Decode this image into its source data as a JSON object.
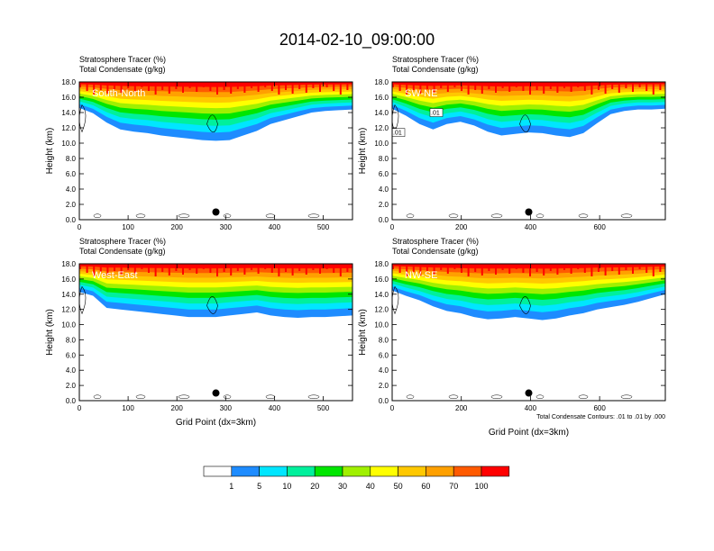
{
  "title": "2014-02-10_09:00:00",
  "chart_data": [
    {
      "type": "heatmap",
      "subtitle_left_1": "Stratosphere Tracer   (%)",
      "subtitle_left_2": "Total Condensate   (g/kg)",
      "panel_label": "South-North",
      "ylabel": "Height (km)",
      "xlabel": "",
      "xlim": [
        0,
        560
      ],
      "ylim": [
        0,
        18
      ],
      "xticks": [
        0,
        100,
        200,
        300,
        400,
        500
      ],
      "yticks": [
        "0.0",
        "2.0",
        "4.0",
        "6.0",
        "8.0",
        "10.0",
        "12.0",
        "14.0",
        "16.0",
        "18.0"
      ],
      "marker": {
        "x": 280,
        "y": 1.0
      },
      "tracer_lower_edge_km": [
        14.6,
        13.9,
        12.7,
        11.8,
        11.5,
        11.3,
        11.0,
        10.8,
        10.6,
        10.4,
        10.3,
        10.4,
        11.0,
        11.6,
        12.5,
        13.0,
        13.5,
        14.0,
        14.2,
        14.3,
        14.4
      ]
    },
    {
      "type": "heatmap",
      "subtitle_left_1": "Stratosphere Tracer   (%)",
      "subtitle_left_2": "Total Condensate   (g/kg)",
      "panel_label": "SW-NE",
      "ylabel": "Height (km)",
      "xlabel": "",
      "xlim": [
        0,
        790
      ],
      "ylim": [
        0,
        18
      ],
      "xticks": [
        0,
        200,
        400,
        600
      ],
      "yticks": [
        "0.0",
        "2.0",
        "4.0",
        "6.0",
        "8.0",
        "10.0",
        "12.0",
        "14.0",
        "16.0",
        "18.0"
      ],
      "marker": {
        "x": 395,
        "y": 1.0
      },
      "contour_labels": [
        ".01",
        ".01"
      ],
      "tracer_lower_edge_km": [
        14.5,
        13.6,
        12.5,
        11.8,
        12.5,
        12.8,
        12.3,
        11.5,
        11.0,
        11.2,
        11.4,
        11.3,
        11.0,
        10.8,
        11.3,
        12.6,
        13.8,
        14.2,
        14.4,
        14.4,
        14.5
      ]
    },
    {
      "type": "heatmap",
      "subtitle_left_1": "Stratosphere Tracer   (%)",
      "subtitle_left_2": "Total Condensate   (g/kg)",
      "panel_label": "West-East",
      "ylabel": "Height (km)",
      "xlabel": "Grid Point (dx=3km)",
      "xlim": [
        0,
        560
      ],
      "ylim": [
        0,
        18
      ],
      "xticks": [
        0,
        100,
        200,
        300,
        400,
        500
      ],
      "yticks": [
        "0.0",
        "2.0",
        "4.0",
        "6.0",
        "8.0",
        "10.0",
        "12.0",
        "14.0",
        "16.0",
        "18.0"
      ],
      "marker": {
        "x": 280,
        "y": 1.0
      },
      "tracer_lower_edge_km": [
        14.3,
        13.8,
        12.2,
        12.0,
        11.8,
        11.6,
        11.4,
        11.2,
        11.0,
        11.0,
        11.0,
        11.2,
        11.4,
        11.6,
        11.2,
        11.0,
        10.9,
        11.0,
        11.0,
        11.1,
        11.2
      ]
    },
    {
      "type": "heatmap",
      "subtitle_left_1": "Stratosphere Tracer   (%)",
      "subtitle_left_2": "Total Condensate   (g/kg)",
      "panel_label": "NW-SE",
      "ylabel": "Height (km)",
      "xlabel": "Grid Point (dx=3km)",
      "xlim": [
        0,
        790
      ],
      "ylim": [
        0,
        18
      ],
      "xticks": [
        0,
        200,
        400,
        600
      ],
      "yticks": [
        "0.0",
        "2.0",
        "4.0",
        "6.0",
        "8.0",
        "10.0",
        "12.0",
        "14.0",
        "16.0",
        "18.0"
      ],
      "marker": {
        "x": 395,
        "y": 1.0
      },
      "footnote": "Total Condensate Contours: .01 to .01 by .000",
      "tracer_lower_edge_km": [
        14.5,
        13.8,
        13.2,
        12.4,
        11.8,
        11.5,
        11.0,
        10.7,
        10.8,
        11.0,
        10.8,
        10.6,
        10.8,
        11.2,
        11.5,
        12.0,
        12.3,
        12.6,
        13.0,
        13.5,
        14.0
      ]
    }
  ],
  "colorbar": {
    "labels": [
      "1",
      "5",
      "10",
      "20",
      "30",
      "40",
      "50",
      "60",
      "70",
      "100"
    ],
    "colors": [
      "#ffffff",
      "#1e8cff",
      "#00e6ff",
      "#00f09c",
      "#00e600",
      "#a0f000",
      "#ffff00",
      "#ffc800",
      "#ffa000",
      "#ff5a00",
      "#ff0000"
    ]
  }
}
